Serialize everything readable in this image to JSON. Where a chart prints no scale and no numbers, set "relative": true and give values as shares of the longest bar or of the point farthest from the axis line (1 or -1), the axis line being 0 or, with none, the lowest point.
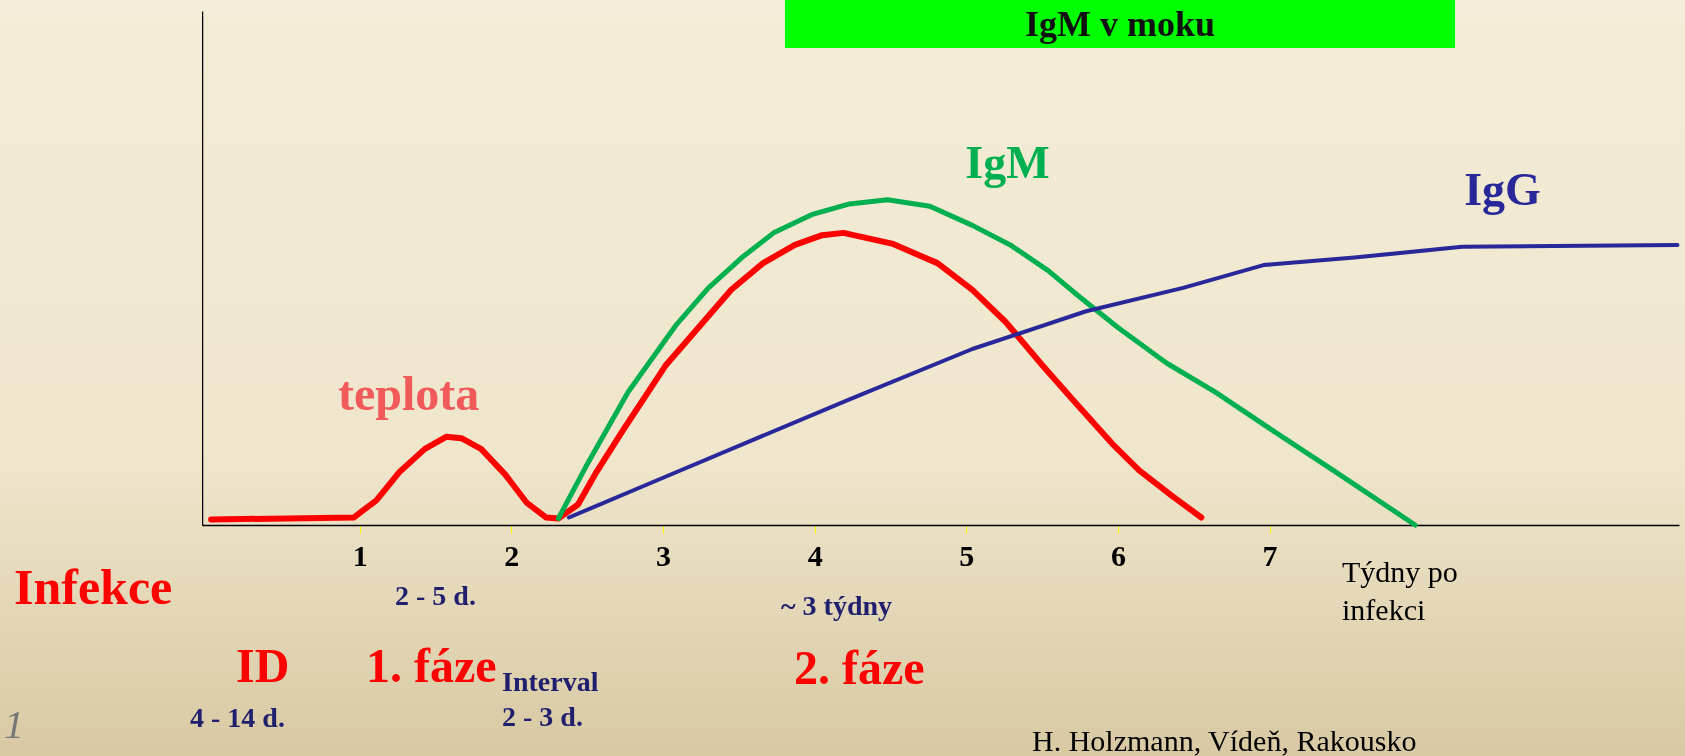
{
  "chart_data": {
    "type": "line",
    "title": "IgM v moku",
    "xlabel": "Týdny po infekci",
    "relative": true,
    "xlim": [
      -0.04,
      9.7
    ],
    "xticks": [
      1,
      2,
      3,
      4,
      5,
      6,
      7
    ],
    "series": [
      {
        "color": "#ff0000",
        "x": [
          0.02,
          0.96,
          1.11,
          1.26,
          1.43,
          1.57,
          1.67,
          1.8,
          1.96,
          2.1,
          2.23,
          2.31,
          2.44,
          2.56,
          2.74,
          3.02,
          3.45,
          3.66,
          3.87,
          4.05,
          4.19,
          4.51,
          4.81,
          5.04,
          5.26,
          5.5,
          5.72,
          5.96,
          6.14,
          6.35,
          6.55
        ],
        "values": [
          0.017,
          0.023,
          0.076,
          0.162,
          0.234,
          0.271,
          0.267,
          0.234,
          0.155,
          0.069,
          0.023,
          0.02,
          0.063,
          0.162,
          0.294,
          0.492,
          0.723,
          0.805,
          0.861,
          0.891,
          0.898,
          0.865,
          0.805,
          0.723,
          0.624,
          0.492,
          0.376,
          0.251,
          0.168,
          0.092,
          0.023
        ]
      },
      {
        "name": "IgM",
        "color": "#00b050",
        "x": [
          2.31,
          2.49,
          2.77,
          3.09,
          3.3,
          3.52,
          3.73,
          3.98,
          4.23,
          4.48,
          4.76,
          5.04,
          5.29,
          5.54,
          5.75,
          6.0,
          6.32,
          6.64,
          6.99,
          7.42,
          7.96
        ],
        "values": [
          0.02,
          0.178,
          0.409,
          0.617,
          0.729,
          0.822,
          0.898,
          0.954,
          0.987,
          1,
          0.98,
          0.921,
          0.861,
          0.782,
          0.7,
          0.607,
          0.498,
          0.409,
          0.3,
          0.168,
          0
        ]
      },
      {
        "name": "IgG",
        "color": "#28289a",
        "x": [
          2.38,
          3.02,
          3.59,
          4.23,
          5.04,
          5.79,
          6.43,
          6.96,
          7.56,
          8.27,
          9.69
        ],
        "values": [
          0.023,
          0.149,
          0.261,
          0.386,
          0.541,
          0.657,
          0.729,
          0.799,
          0.822,
          0.855,
          0.861
        ]
      }
    ],
    "annotations": [
      "teplota",
      "Infekce",
      "ID",
      "1. fáze",
      "2. fáze",
      "2 - 5 d.",
      "~ 3 týdny",
      "Interval\n2 - 3 d.",
      "4 - 14 d.",
      "1",
      "H. Holzmann, Vídeň, Rakousko"
    ]
  }
}
